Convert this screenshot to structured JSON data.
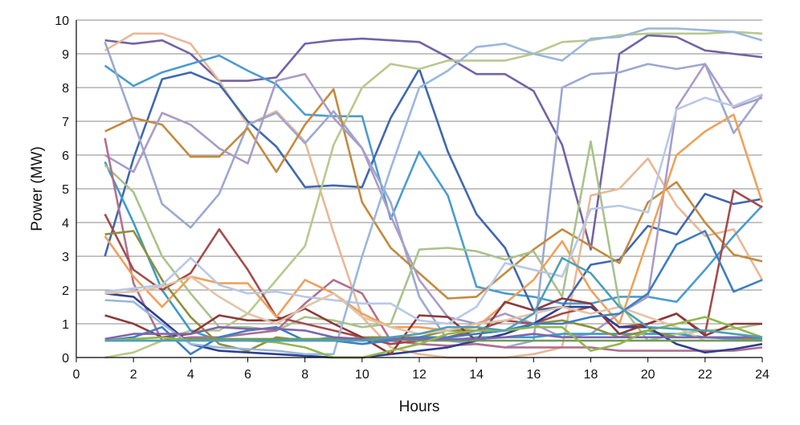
{
  "chart_data": {
    "type": "line",
    "title": "",
    "xlabel": "Hours",
    "ylabel": "Power (MW)",
    "xlim": [
      0,
      24
    ],
    "ylim": [
      0,
      10
    ],
    "x_ticks": [
      0,
      2,
      4,
      6,
      8,
      10,
      12,
      14,
      16,
      18,
      20,
      22,
      24
    ],
    "y_ticks": [
      0,
      1,
      2,
      3,
      4,
      5,
      6,
      7,
      8,
      9,
      10
    ],
    "grid": "horizontal",
    "legend": "none",
    "x": [
      1,
      2,
      3,
      4,
      5,
      6,
      7,
      8,
      9,
      10,
      11,
      12,
      13,
      14,
      15,
      16,
      17,
      18,
      19,
      20,
      21,
      22,
      23,
      24
    ],
    "series": [
      {
        "color": "#7263a6",
        "values": [
          9.4,
          9.3,
          9.4,
          9.0,
          8.2,
          8.2,
          8.3,
          9.3,
          9.4,
          9.45,
          9.4,
          9.35,
          8.9,
          8.4,
          8.4,
          7.9,
          6.3,
          3.2,
          9.0,
          9.55,
          9.5,
          9.1,
          9.0,
          8.9
        ]
      },
      {
        "color": "#e8b896",
        "values": [
          9.1,
          9.6,
          9.6,
          9.3,
          8.2,
          6.9,
          7.3,
          6.4,
          3.7,
          1.2,
          0.3,
          0.1,
          0.0,
          0.0,
          0.0,
          0.1,
          0.3,
          4.8,
          5.0,
          5.9,
          4.5,
          3.6,
          3.8,
          2.3
        ]
      },
      {
        "color": "#4a9cd0",
        "values": [
          8.65,
          8.05,
          8.45,
          8.7,
          8.95,
          8.5,
          8.1,
          7.2,
          7.15,
          7.15,
          4.1,
          6.1,
          4.8,
          2.1,
          1.9,
          1.8,
          1.6,
          1.6,
          1.8,
          1.8,
          1.65,
          2.6,
          3.6,
          4.5
        ]
      },
      {
        "color": "#3f68b0",
        "values": [
          3.0,
          5.9,
          8.25,
          8.45,
          8.1,
          7.0,
          6.25,
          5.05,
          5.1,
          5.05,
          7.1,
          8.55,
          6.1,
          4.25,
          3.25,
          1.4,
          1.5,
          2.75,
          2.9,
          3.9,
          3.65,
          4.85,
          4.55,
          4.7
        ]
      },
      {
        "color": "#b8c98c",
        "values": [
          0.0,
          0.15,
          0.5,
          0.8,
          0.8,
          1.3,
          2.3,
          3.3,
          6.3,
          8.0,
          8.7,
          8.55,
          8.8,
          8.8,
          8.8,
          9.0,
          9.35,
          9.4,
          9.55,
          9.6,
          9.6,
          9.6,
          9.65,
          9.6
        ]
      },
      {
        "color": "#9ba8d0",
        "values": [
          9.35,
          7.0,
          4.55,
          3.85,
          4.85,
          6.9,
          7.25,
          6.35,
          7.3,
          6.2,
          4.6,
          1.8,
          0.5,
          0.4,
          0.3,
          0.5,
          8.0,
          8.4,
          8.45,
          8.7,
          8.55,
          8.7,
          6.65,
          7.8
        ]
      },
      {
        "color": "#c48a3e",
        "values": [
          6.7,
          7.1,
          6.9,
          5.95,
          5.95,
          6.8,
          5.5,
          6.9,
          7.95,
          4.6,
          3.25,
          2.5,
          1.75,
          1.8,
          2.5,
          3.2,
          3.8,
          3.3,
          2.8,
          4.6,
          5.2,
          4.0,
          3.05,
          2.85
        ]
      },
      {
        "color": "#a99cc8",
        "values": [
          6.0,
          5.5,
          7.25,
          6.9,
          6.2,
          5.75,
          8.2,
          8.4,
          7.1,
          6.2,
          4.2,
          2.3,
          1.2,
          1.0,
          1.3,
          1.0,
          0.6,
          0.7,
          1.3,
          1.8,
          7.4,
          8.7,
          7.4,
          7.7
        ]
      },
      {
        "color": "#3b9cc9",
        "values": [
          5.8,
          4.0,
          2.0,
          0.8,
          0.5,
          0.5,
          0.5,
          0.5,
          0.6,
          0.5,
          0.5,
          0.6,
          0.5,
          0.6,
          0.6,
          0.6,
          0.7,
          0.7,
          0.7,
          0.7,
          0.7,
          0.6,
          0.55,
          0.55
        ]
      },
      {
        "color": "#a9c28a",
        "values": [
          5.7,
          4.9,
          3.0,
          1.9,
          0.9,
          0.9,
          0.8,
          1.2,
          1.1,
          0.9,
          1.0,
          3.2,
          3.25,
          3.15,
          2.9,
          3.15,
          1.8,
          6.4,
          1.6,
          0.5,
          0.7,
          0.8,
          0.85,
          1.0
        ]
      },
      {
        "color": "#b07090",
        "values": [
          6.5,
          2.2,
          0.5,
          0.6,
          0.6,
          0.7,
          0.8,
          1.6,
          2.3,
          1.9,
          0.5,
          0.4,
          0.35,
          0.4,
          0.3,
          0.3,
          0.3,
          0.3,
          0.2,
          0.2,
          0.2,
          0.2,
          0.2,
          0.3
        ]
      },
      {
        "color": "#a54b4b",
        "values": [
          4.25,
          2.6,
          2.0,
          2.5,
          3.8,
          2.6,
          1.2,
          1.0,
          0.8,
          0.6,
          0.4,
          0.5,
          0.6,
          0.8,
          1.1,
          1.0,
          1.3,
          1.5,
          0.9,
          1.0,
          1.3,
          0.7,
          4.95,
          4.45
        ]
      },
      {
        "color": "#f0a05a",
        "values": [
          3.6,
          2.4,
          1.5,
          2.4,
          2.2,
          2.2,
          1.2,
          2.3,
          1.9,
          1.3,
          0.9,
          0.9,
          0.8,
          0.9,
          1.6,
          2.3,
          3.45,
          2.0,
          1.0,
          3.5,
          6.0,
          6.7,
          7.2,
          4.6
        ]
      },
      {
        "color": "#8f8f3a",
        "values": [
          3.65,
          3.75,
          2.3,
          1.2,
          0.4,
          0.2,
          0.6,
          0.5,
          0.5,
          0.6,
          0.6,
          0.6,
          0.8,
          0.8,
          0.8,
          1.0,
          1.1,
          0.9,
          0.6,
          0.8,
          0.6,
          0.6,
          0.6,
          0.5
        ]
      },
      {
        "color": "#2e3f8f",
        "values": [
          1.9,
          1.8,
          1.1,
          0.4,
          0.2,
          0.15,
          0.1,
          0.05,
          0.0,
          0.0,
          0.1,
          0.2,
          0.3,
          0.5,
          0.7,
          1.0,
          1.5,
          1.5,
          0.9,
          0.9,
          0.4,
          0.15,
          0.25,
          0.4
        ]
      },
      {
        "color": "#8c3a3a",
        "values": [
          1.25,
          1.0,
          0.6,
          0.7,
          1.25,
          1.1,
          1.1,
          1.45,
          1.0,
          0.6,
          0.1,
          1.25,
          1.2,
          0.5,
          1.65,
          1.4,
          1.75,
          1.6,
          0.7,
          1.0,
          1.3,
          0.65,
          1.0,
          1.0
        ]
      },
      {
        "color": "#b8c8e8",
        "values": [
          1.95,
          2.05,
          2.15,
          2.95,
          2.15,
          1.9,
          1.95,
          1.8,
          1.7,
          1.6,
          1.6,
          1.1,
          1.0,
          1.5,
          2.8,
          2.6,
          2.4,
          4.4,
          4.5,
          4.3,
          7.35,
          7.7,
          7.45,
          7.8
        ]
      },
      {
        "color": "#e2c4a8",
        "values": [
          1.9,
          1.95,
          2.1,
          2.4,
          1.8,
          1.3,
          1.0,
          1.5,
          1.9,
          1.2,
          0.9,
          0.7,
          0.8,
          1.0,
          1.1,
          1.3,
          1.5,
          1.3,
          1.5,
          1.2,
          0.9,
          0.5,
          0.5,
          0.5
        ]
      },
      {
        "color": "#9ab7dc",
        "values": [
          1.7,
          1.65,
          1.0,
          0.4,
          0.3,
          0.25,
          0.2,
          0.1,
          0.1,
          3.0,
          5.6,
          8.0,
          8.5,
          9.2,
          9.3,
          9.0,
          8.8,
          9.45,
          9.5,
          9.75,
          9.75,
          9.7,
          9.65,
          9.4
        ]
      },
      {
        "color": "#3b7fc2",
        "values": [
          0.5,
          0.6,
          0.9,
          0.1,
          0.6,
          0.8,
          0.9,
          0.5,
          0.5,
          0.4,
          0.5,
          0.6,
          0.6,
          0.7,
          0.8,
          1.0,
          1.0,
          1.2,
          1.3,
          1.9,
          3.35,
          3.75,
          1.95,
          2.3
        ]
      },
      {
        "color": "#6e9a5a",
        "values": [
          0.5,
          0.5,
          0.5,
          0.55,
          0.55,
          0.55,
          0.55,
          0.55,
          0.55,
          0.5,
          0.55,
          0.5,
          0.5,
          0.5,
          0.5,
          0.5,
          0.5,
          0.5,
          0.5,
          0.5,
          0.5,
          0.5,
          0.5,
          0.5
        ]
      },
      {
        "color": "#7d65b0",
        "values": [
          0.55,
          0.7,
          0.7,
          0.7,
          0.9,
          0.85,
          0.85,
          0.8,
          0.6,
          0.55,
          0.55,
          0.55,
          0.55,
          0.55,
          0.6,
          0.7,
          0.6,
          0.6,
          0.6,
          0.6,
          0.6,
          0.6,
          0.6,
          0.6
        ]
      },
      {
        "color": "#93b64c",
        "values": [
          0.5,
          0.55,
          0.6,
          0.5,
          0.5,
          0.5,
          0.45,
          0.3,
          0.0,
          0.0,
          0.2,
          0.4,
          0.7,
          0.8,
          0.8,
          0.9,
          0.9,
          0.2,
          0.4,
          0.8,
          1.0,
          1.2,
          0.9,
          0.6
        ]
      },
      {
        "color": "#4e9fb7",
        "values": [
          0.5,
          0.5,
          0.5,
          0.5,
          0.5,
          0.5,
          0.5,
          0.5,
          0.5,
          0.5,
          0.6,
          0.7,
          0.9,
          0.9,
          0.8,
          1.3,
          2.95,
          2.5,
          1.5,
          0.9,
          0.85,
          0.8,
          0.7,
          0.6
        ]
      }
    ]
  }
}
